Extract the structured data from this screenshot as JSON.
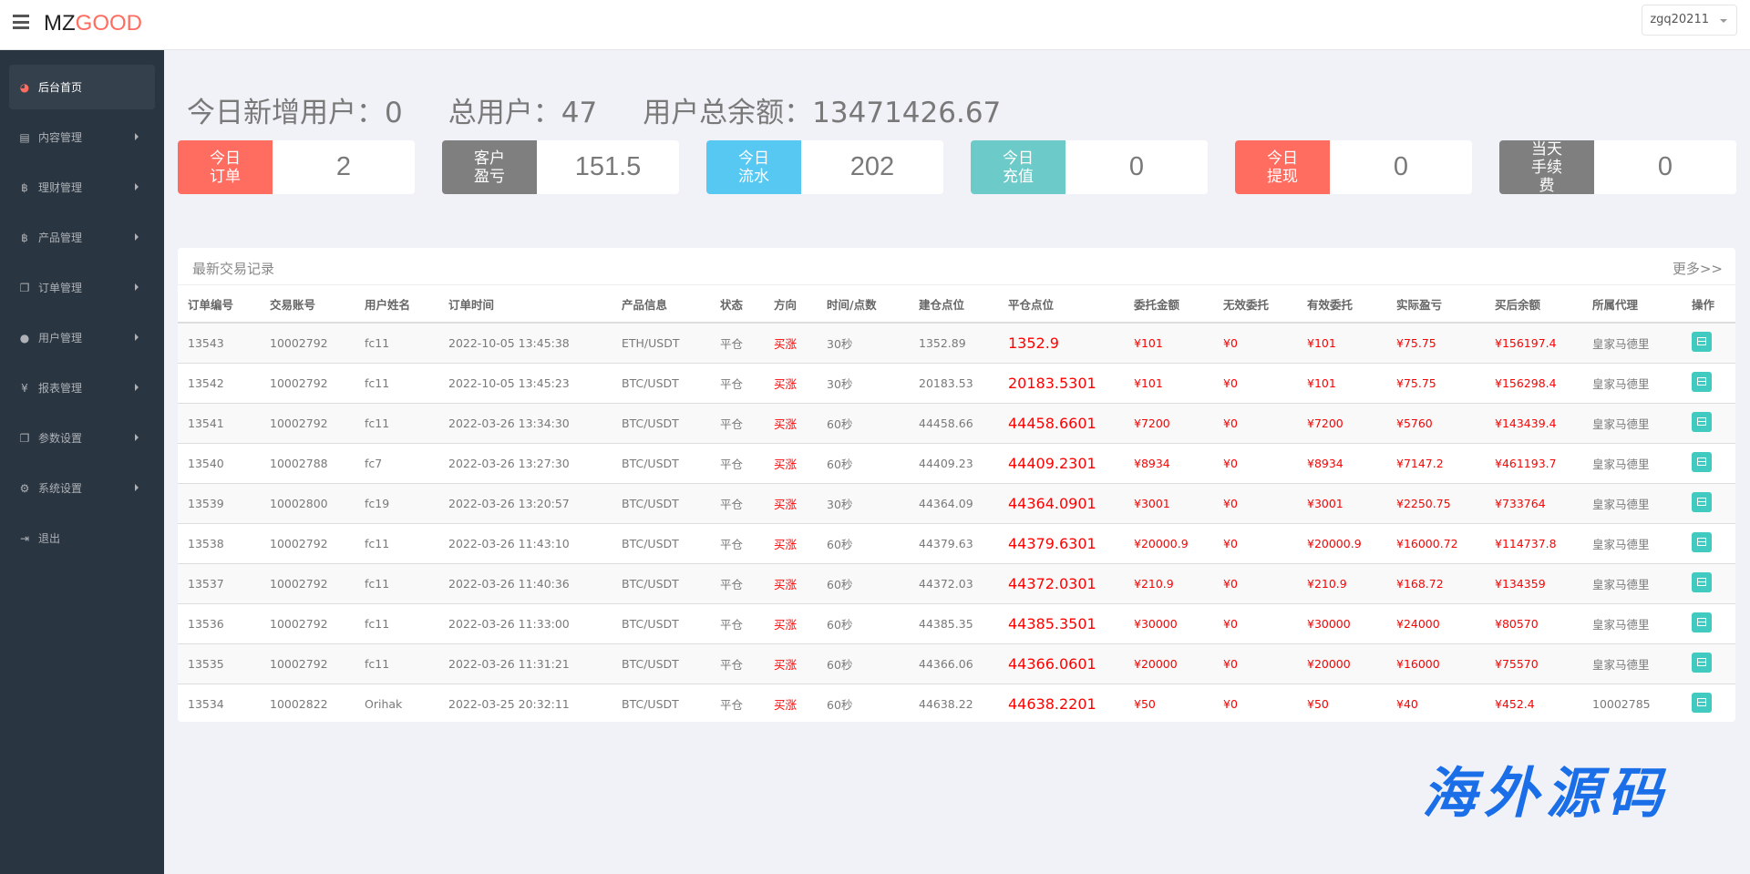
{
  "header": {
    "logo_prefix": "MZ",
    "logo_suffix": "GOOD",
    "user": "zgq20211"
  },
  "sidebar": {
    "items": [
      {
        "label": "后台首页",
        "icon": "dashboard-icon",
        "glyph": "◕",
        "active": true,
        "arrow": false
      },
      {
        "label": "内容管理",
        "icon": "book-icon",
        "glyph": "▤",
        "arrow": true
      },
      {
        "label": "理财管理",
        "icon": "bitcoin-icon",
        "glyph": "฿",
        "arrow": true
      },
      {
        "label": "产品管理",
        "icon": "bitcoin-icon",
        "glyph": "฿",
        "arrow": true
      },
      {
        "label": "订单管理",
        "icon": "copy-icon",
        "glyph": "❐",
        "arrow": true
      },
      {
        "label": "用户管理",
        "icon": "user-icon",
        "glyph": "●",
        "arrow": true
      },
      {
        "label": "报表管理",
        "icon": "yen-icon",
        "glyph": "¥",
        "arrow": true
      },
      {
        "label": "参数设置",
        "icon": "copy-icon",
        "glyph": "❐",
        "arrow": true
      },
      {
        "label": "系统设置",
        "icon": "gears-icon",
        "glyph": "⚙",
        "arrow": true
      },
      {
        "label": "退出",
        "icon": "sign-out-icon",
        "glyph": "⇥",
        "arrow": false
      }
    ]
  },
  "summary": {
    "new_users": "今日新增用户：0",
    "total_users": "总用户：47",
    "total_balance": "用户总余额：13471426.67"
  },
  "cards": [
    {
      "label": "今日订单",
      "value": "2",
      "color": "#ff6c60"
    },
    {
      "label": "客户盈亏",
      "value": "151.5",
      "color": "#7f7f7f"
    },
    {
      "label": "今日流水",
      "value": "202",
      "color": "#57c8f2"
    },
    {
      "label": "今日充值",
      "value": "0",
      "color": "#6ccac9"
    },
    {
      "label": "今日提现",
      "value": "0",
      "color": "#ff6c60"
    },
    {
      "label": "当天手续费",
      "value": "0",
      "color": "#7f7f7f"
    }
  ],
  "trades": {
    "title": "最新交易记录",
    "more": "更多>>",
    "columns": [
      "订单编号",
      "交易账号",
      "用户姓名",
      "订单时间",
      "产品信息",
      "状态",
      "方向",
      "时间/点数",
      "建仓点位",
      "平仓点位",
      "委托金额",
      "无效委托",
      "有效委托",
      "实际盈亏",
      "买后余额",
      "所属代理",
      "操作"
    ],
    "rows": [
      [
        "13543",
        "10002792",
        "fc11",
        "2022-10-05 13:45:38",
        "ETH/USDT",
        "平仓",
        "买涨",
        "30秒",
        "1352.89",
        "1352.9",
        "¥101",
        "¥0",
        "¥101",
        "¥75.75",
        "¥156197.4",
        "皇家马德里"
      ],
      [
        "13542",
        "10002792",
        "fc11",
        "2022-10-05 13:45:23",
        "BTC/USDT",
        "平仓",
        "买涨",
        "30秒",
        "20183.53",
        "20183.5301",
        "¥101",
        "¥0",
        "¥101",
        "¥75.75",
        "¥156298.4",
        "皇家马德里"
      ],
      [
        "13541",
        "10002792",
        "fc11",
        "2022-03-26 13:34:30",
        "BTC/USDT",
        "平仓",
        "买涨",
        "60秒",
        "44458.66",
        "44458.6601",
        "¥7200",
        "¥0",
        "¥7200",
        "¥5760",
        "¥143439.4",
        "皇家马德里"
      ],
      [
        "13540",
        "10002788",
        "fc7",
        "2022-03-26 13:27:30",
        "BTC/USDT",
        "平仓",
        "买涨",
        "60秒",
        "44409.23",
        "44409.2301",
        "¥8934",
        "¥0",
        "¥8934",
        "¥7147.2",
        "¥461193.7",
        "皇家马德里"
      ],
      [
        "13539",
        "10002800",
        "fc19",
        "2022-03-26 13:20:57",
        "BTC/USDT",
        "平仓",
        "买涨",
        "30秒",
        "44364.09",
        "44364.0901",
        "¥3001",
        "¥0",
        "¥3001",
        "¥2250.75",
        "¥733764",
        "皇家马德里"
      ],
      [
        "13538",
        "10002792",
        "fc11",
        "2022-03-26 11:43:10",
        "BTC/USDT",
        "平仓",
        "买涨",
        "60秒",
        "44379.63",
        "44379.6301",
        "¥20000.9",
        "¥0",
        "¥20000.9",
        "¥16000.72",
        "¥114737.8",
        "皇家马德里"
      ],
      [
        "13537",
        "10002792",
        "fc11",
        "2022-03-26 11:40:36",
        "BTC/USDT",
        "平仓",
        "买涨",
        "60秒",
        "44372.03",
        "44372.0301",
        "¥210.9",
        "¥0",
        "¥210.9",
        "¥168.72",
        "¥134359",
        "皇家马德里"
      ],
      [
        "13536",
        "10002792",
        "fc11",
        "2022-03-26 11:33:00",
        "BTC/USDT",
        "平仓",
        "买涨",
        "60秒",
        "44385.35",
        "44385.3501",
        "¥30000",
        "¥0",
        "¥30000",
        "¥24000",
        "¥80570",
        "皇家马德里"
      ],
      [
        "13535",
        "10002792",
        "fc11",
        "2022-03-26 11:31:21",
        "BTC/USDT",
        "平仓",
        "买涨",
        "60秒",
        "44366.06",
        "44366.0601",
        "¥20000",
        "¥0",
        "¥20000",
        "¥16000",
        "¥75570",
        "皇家马德里"
      ],
      [
        "13534",
        "10002822",
        "Orihak",
        "2022-03-25 20:32:11",
        "BTC/USDT",
        "平仓",
        "买涨",
        "60秒",
        "44638.22",
        "44638.2201",
        "¥50",
        "¥0",
        "¥50",
        "¥40",
        "¥452.4",
        "10002785"
      ]
    ]
  },
  "watermark": "海外源码"
}
